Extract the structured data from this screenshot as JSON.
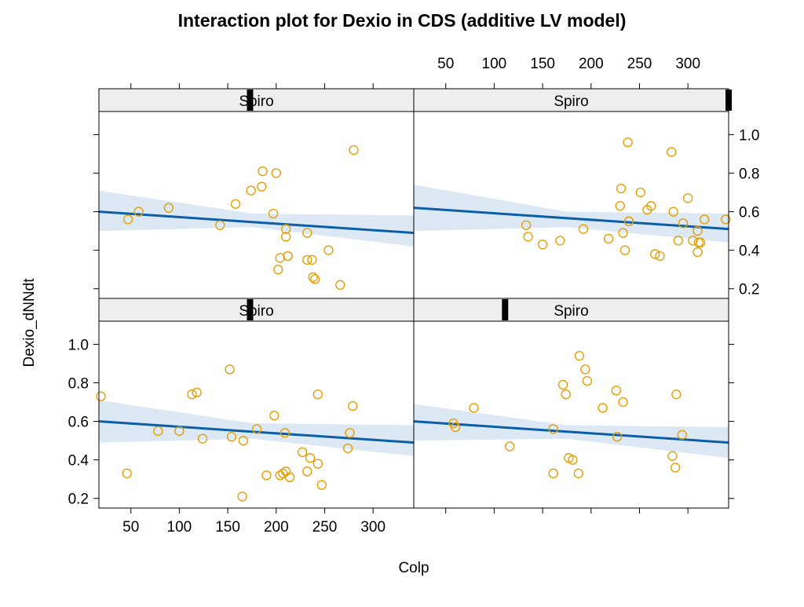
{
  "chart_data": {
    "type": "scatter",
    "title": "Interaction plot for Dexio in CDS (additive LV model)",
    "xlabel": "Colp",
    "ylabel": "Dexio_dNNdt",
    "xlim": [
      17,
      342
    ],
    "ylim": [
      0.15,
      1.12
    ],
    "x_ticks": [
      50,
      100,
      150,
      200,
      250,
      300
    ],
    "y_ticks": [
      0.2,
      0.4,
      0.6,
      0.8,
      1.0
    ],
    "y_tick_labels": [
      "0.2",
      "0.4",
      "0.6",
      "0.8",
      "1.0"
    ],
    "grid": false,
    "colors": {
      "points": "#E69F00",
      "fit_line": "#0b5ea8",
      "band": "#dce8f3",
      "strip_bg": "#eeeeee",
      "strip_marker": "#000000",
      "frame": "#000000"
    },
    "panels": [
      {
        "strip_label": "Spiro",
        "strip_level": 0.48,
        "fit": {
          "x": [
            17,
            342
          ],
          "y": [
            0.6,
            0.49
          ]
        },
        "band": {
          "x": [
            17,
            175,
            342
          ],
          "upper": [
            0.71,
            0.59,
            0.58
          ],
          "lower": [
            0.49,
            0.51,
            0.42
          ]
        },
        "points": {
          "x": [
            19,
            46,
            78,
            100,
            124,
            113,
            118,
            152,
            154,
            165,
            166,
            180,
            190,
            198,
            204,
            207,
            209,
            210,
            214,
            227,
            232,
            235,
            243,
            243,
            247,
            274,
            276,
            279
          ],
          "y": [
            0.73,
            0.33,
            0.55,
            0.55,
            0.51,
            0.74,
            0.75,
            0.87,
            0.52,
            0.21,
            0.5,
            0.56,
            0.32,
            0.63,
            0.32,
            0.33,
            0.54,
            0.34,
            0.31,
            0.44,
            0.34,
            0.41,
            0.74,
            0.38,
            0.27,
            0.46,
            0.54,
            0.68
          ]
        }
      },
      {
        "strip_label": "Spiro",
        "strip_level": 0.29,
        "fit": {
          "x": [
            17,
            342
          ],
          "y": [
            0.6,
            0.49
          ]
        },
        "band": {
          "x": [
            17,
            175,
            342
          ],
          "upper": [
            0.69,
            0.58,
            0.57
          ],
          "lower": [
            0.5,
            0.51,
            0.41
          ]
        },
        "points": {
          "x": [
            58,
            60,
            79,
            116,
            161,
            161,
            171,
            174,
            177,
            181,
            188,
            187,
            194,
            196,
            212,
            226,
            227,
            233,
            284,
            288,
            287,
            294
          ],
          "y": [
            0.59,
            0.57,
            0.67,
            0.47,
            0.56,
            0.33,
            0.79,
            0.74,
            0.41,
            0.4,
            0.94,
            0.33,
            0.87,
            0.81,
            0.67,
            0.76,
            0.52,
            0.7,
            0.42,
            0.74,
            0.36,
            0.53
          ]
        }
      },
      {
        "strip_label": "Spiro",
        "strip_level": 0.48,
        "fit": {
          "x": [
            17,
            342
          ],
          "y": [
            0.6,
            0.49
          ]
        },
        "band": {
          "x": [
            17,
            175,
            342
          ],
          "upper": [
            0.71,
            0.59,
            0.58
          ],
          "lower": [
            0.5,
            0.52,
            0.42
          ]
        },
        "points": {
          "x": [
            47,
            58,
            89,
            142,
            158,
            174,
            185,
            186,
            197,
            200,
            204,
            210,
            210,
            212,
            202,
            212,
            232,
            232,
            237,
            238,
            240,
            254,
            266,
            280
          ],
          "y": [
            0.56,
            0.6,
            0.62,
            0.53,
            0.64,
            0.71,
            0.73,
            0.81,
            0.59,
            0.8,
            0.36,
            0.47,
            0.51,
            0.37,
            0.3,
            0.37,
            0.49,
            0.35,
            0.35,
            0.26,
            0.25,
            0.4,
            0.22,
            0.92
          ]
        }
      },
      {
        "strip_label": "Spiro",
        "strip_level": 1.0,
        "fit": {
          "x": [
            17,
            342
          ],
          "y": [
            0.62,
            0.51
          ]
        },
        "band": {
          "x": [
            17,
            175,
            342
          ],
          "upper": [
            0.74,
            0.6,
            0.59
          ],
          "lower": [
            0.5,
            0.52,
            0.44
          ]
        },
        "points": {
          "x": [
            133,
            135,
            150,
            168,
            192,
            218,
            230,
            233,
            238,
            231,
            235,
            239,
            239,
            251,
            258,
            262,
            266,
            271,
            283,
            285,
            290,
            295,
            300,
            305,
            310,
            310,
            311,
            313,
            317,
            339
          ],
          "y": [
            0.53,
            0.47,
            0.43,
            0.45,
            0.51,
            0.46,
            0.63,
            0.49,
            0.96,
            0.72,
            0.4,
            0.55,
            0.55,
            0.7,
            0.61,
            0.63,
            0.38,
            0.37,
            0.91,
            0.6,
            0.45,
            0.54,
            0.67,
            0.45,
            0.5,
            0.39,
            0.44,
            0.44,
            0.56,
            0.56
          ]
        }
      }
    ]
  }
}
